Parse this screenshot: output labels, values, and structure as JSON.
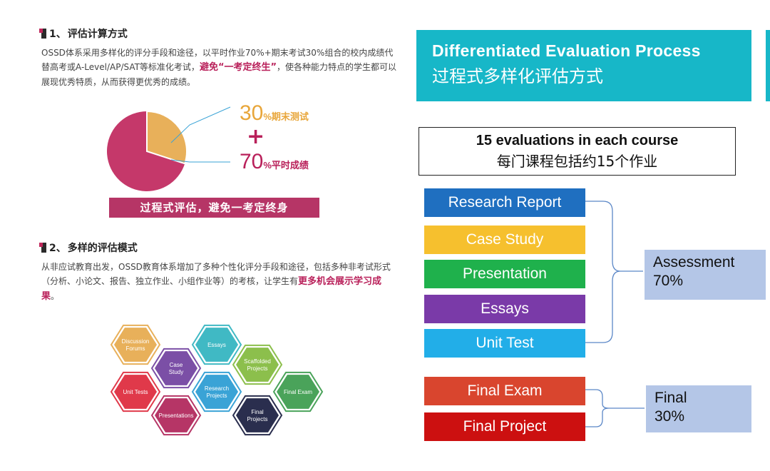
{
  "left": {
    "section1": {
      "number": "1、",
      "title": "评估计算方式",
      "para_before": "OSSD体系采用多样化的评分手段和途径，以平时作业70%+期末考试30%组合的校内成绩代替高考或A-Level/AP/SAT等标准化考试，",
      "para_highlight": "避免“一考定终生”",
      "para_after": "，使各种能力特点的学生都可以展现优秀特质，从而获得更优秀的成绩。"
    },
    "pie": {
      "final_pct": "30",
      "final_label": "%期末测试",
      "plus": "+",
      "daily_pct": "70",
      "daily_label": "%平时成绩",
      "final_share": 0.3,
      "daily_share": 0.7,
      "final_color": "#e8b05a",
      "daily_color": "#c5386a"
    },
    "banner": "过程式评估，避免一考定终身",
    "section2": {
      "number": "2、",
      "title": "多样的评估模式",
      "para_before": "从非应试教育出发，OSSD教育体系增加了多种个性化评分手段和途径，包括多种非考试形式（分析、小论文、报告、独立作业、小组作业等）的考核，让学生有",
      "para_highlight": "更多机会展示学习成果",
      "para_after": "。"
    },
    "hexagons": [
      {
        "label1": "Discussion",
        "label2": "Forums",
        "color": "#e8b05a"
      },
      {
        "label1": "Case",
        "label2": "Study",
        "color": "#7b4fa6"
      },
      {
        "label1": "Essays",
        "label2": "",
        "color": "#40b9c4"
      },
      {
        "label1": "Scaffolded",
        "label2": "Projects",
        "color": "#8cbf4c"
      },
      {
        "label1": "Unit Tests",
        "label2": "",
        "color": "#e0394a"
      },
      {
        "label1": "Research",
        "label2": "Projects",
        "color": "#3aa3d6"
      },
      {
        "label1": "Final Exam",
        "label2": "",
        "color": "#4aa35a"
      },
      {
        "label1": "Presentations",
        "label2": "",
        "color": "#b63566"
      },
      {
        "label1": "Final",
        "label2": "Projects",
        "color": "#2a2e4e"
      }
    ]
  },
  "right": {
    "title_en": "Differentiated Evaluation Process",
    "title_cn": "过程式多样化评估方式",
    "eval_en": "15 evaluations in each course",
    "eval_cn": "每门课程包括约15个作业",
    "items": [
      {
        "label": "Research Report",
        "color": "#1f6fc0"
      },
      {
        "label": "Case Study",
        "color": "#f6c02e"
      },
      {
        "label": "Presentation",
        "color": "#1fb14c"
      },
      {
        "label": "Essays",
        "color": "#7a3aa8"
      },
      {
        "label": "Unit Test",
        "color": "#22aee8"
      },
      {
        "label": "Final Exam",
        "color": "#d9452e"
      },
      {
        "label": "Final Project",
        "color": "#cc1010"
      }
    ],
    "assessment": {
      "line1": "Assessment",
      "line2": "70%"
    },
    "final": {
      "line1": "Final",
      "line2": "30%"
    }
  }
}
